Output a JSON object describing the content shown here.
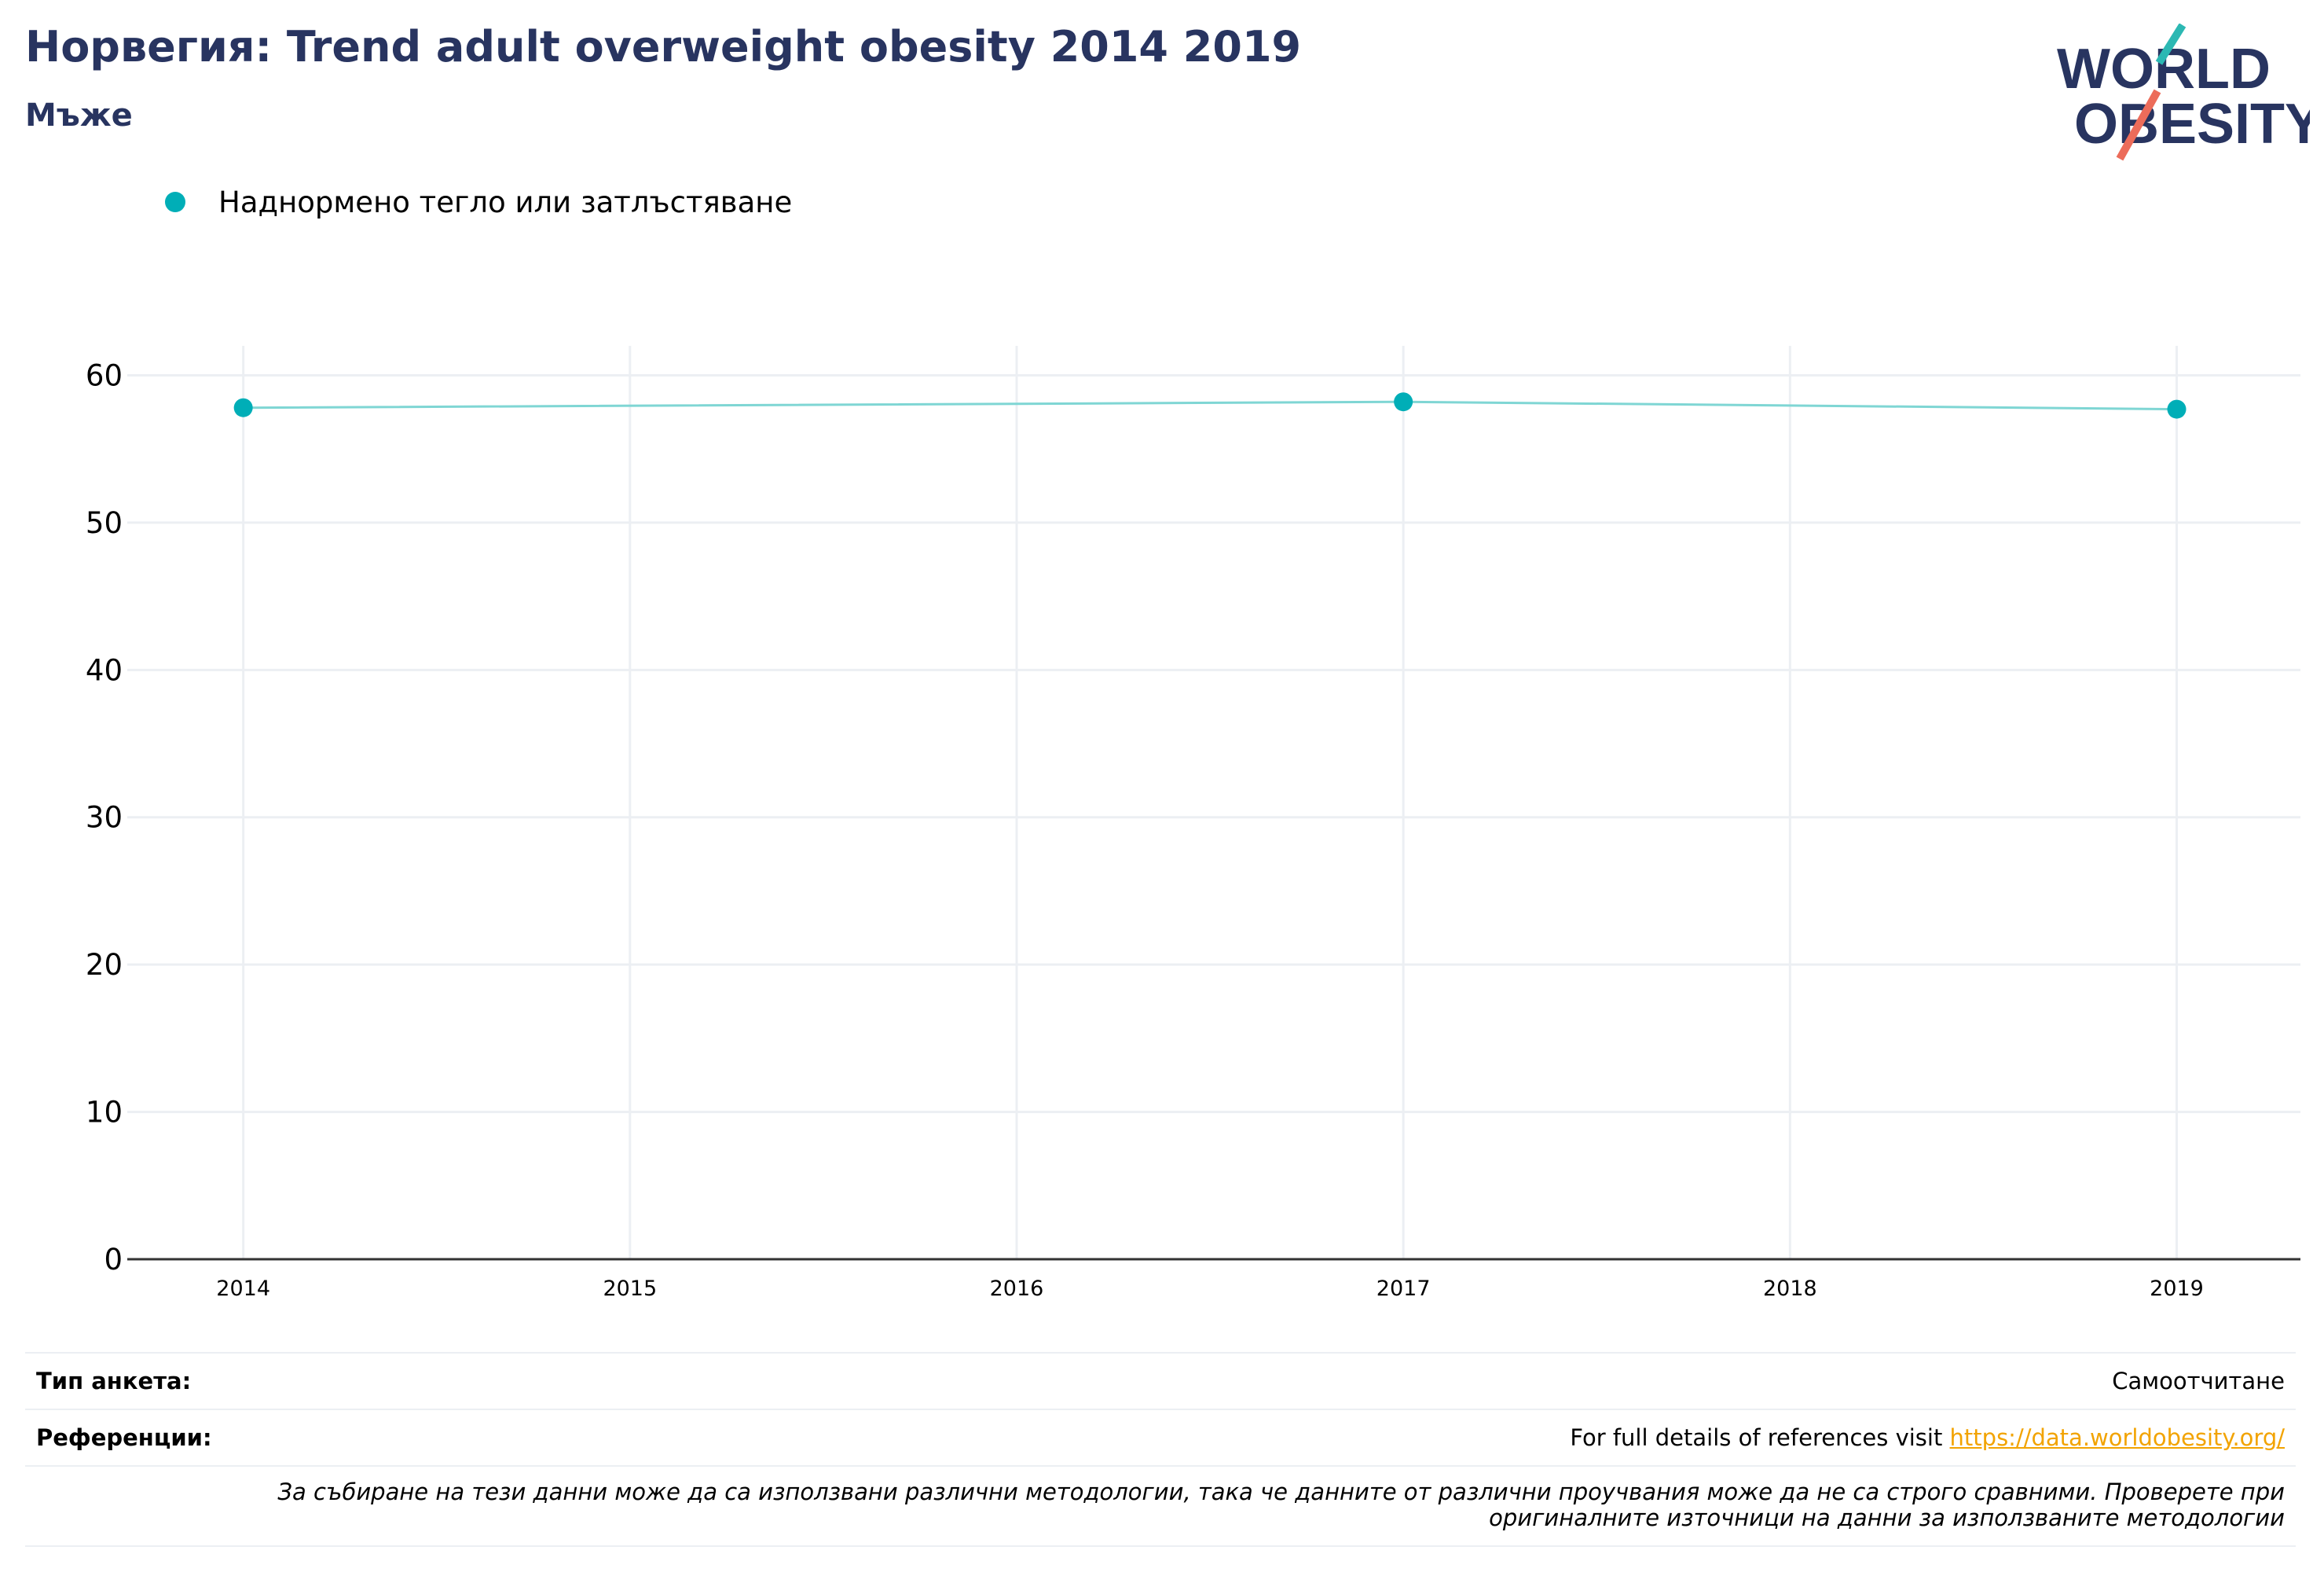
{
  "header": {
    "title": "Норвегия: Trend adult overweight obesity 2014 2019",
    "subtitle": "Мъже"
  },
  "logo": {
    "line1": "WORLD",
    "line2": "OBESITY",
    "alt_text": "World Obesity logo"
  },
  "colors": {
    "series": "#00aeb7",
    "line": "#7fd6d4",
    "title": "#283460",
    "link": "#f2a300",
    "grid": "#eceff3"
  },
  "chart_data": {
    "type": "line",
    "title": "Норвегия: Trend adult overweight obesity 2014 2019",
    "subtitle": "Мъже",
    "x": [
      2014,
      2015,
      2016,
      2017,
      2018,
      2019
    ],
    "x_tick_labels": [
      "2014",
      "2015",
      "2016",
      "2017",
      "2018",
      "2019"
    ],
    "y_ticks": [
      0,
      10,
      20,
      30,
      40,
      50,
      60
    ],
    "ylim": [
      0,
      62
    ],
    "xlim": [
      2013.7,
      2019.32
    ],
    "grid": true,
    "legend_position": "top-left",
    "series": [
      {
        "name": "Наднормено тегло или затлъстяване",
        "points": [
          {
            "x": 2014,
            "y": 57.8
          },
          {
            "x": 2017,
            "y": 58.2
          },
          {
            "x": 2019,
            "y": 57.7
          }
        ]
      }
    ]
  },
  "footer": {
    "survey_label": "Тип анкета:",
    "survey_value": "Самоотчитане",
    "references_label": "Референции:",
    "references_prefix": "For full details of references visit ",
    "references_link": "https://data.worldobesity.org/",
    "note_line1": "За събиране на тези данни може да са използвани различни методологии, така че данните от различни проучвания може да не са строго сравними. Проверете при",
    "note_line2": "оригиналните източници на данни за използваните методологии"
  }
}
